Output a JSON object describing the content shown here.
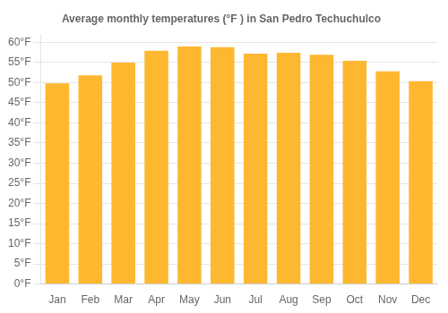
{
  "chart_data": {
    "type": "bar",
    "title": "Average monthly temperatures (°F ) in San Pedro Techuchulco",
    "categories": [
      "Jan",
      "Feb",
      "Mar",
      "Apr",
      "May",
      "Jun",
      "Jul",
      "Aug",
      "Sep",
      "Oct",
      "Nov",
      "Dec"
    ],
    "values": [
      49.8,
      51.8,
      55.0,
      57.9,
      59.0,
      58.8,
      57.2,
      57.4,
      56.9,
      55.4,
      52.8,
      50.4
    ],
    "color": "#FDB830",
    "ylim": [
      0,
      62
    ],
    "yticks": [
      {
        "value": 0,
        "label": "0°F"
      },
      {
        "value": 5,
        "label": "5°F"
      },
      {
        "value": 10,
        "label": "10°F"
      },
      {
        "value": 15,
        "label": "15°F"
      },
      {
        "value": 20,
        "label": "20°F"
      },
      {
        "value": 25,
        "label": "25°F"
      },
      {
        "value": 30,
        "label": "30°F"
      },
      {
        "value": 35,
        "label": "35°F"
      },
      {
        "value": 40,
        "label": "40°F"
      },
      {
        "value": 45,
        "label": "45°F"
      },
      {
        "value": 50,
        "label": "50°F"
      },
      {
        "value": 55,
        "label": "55°F"
      },
      {
        "value": 60,
        "label": "60°F"
      }
    ],
    "grid": true
  }
}
